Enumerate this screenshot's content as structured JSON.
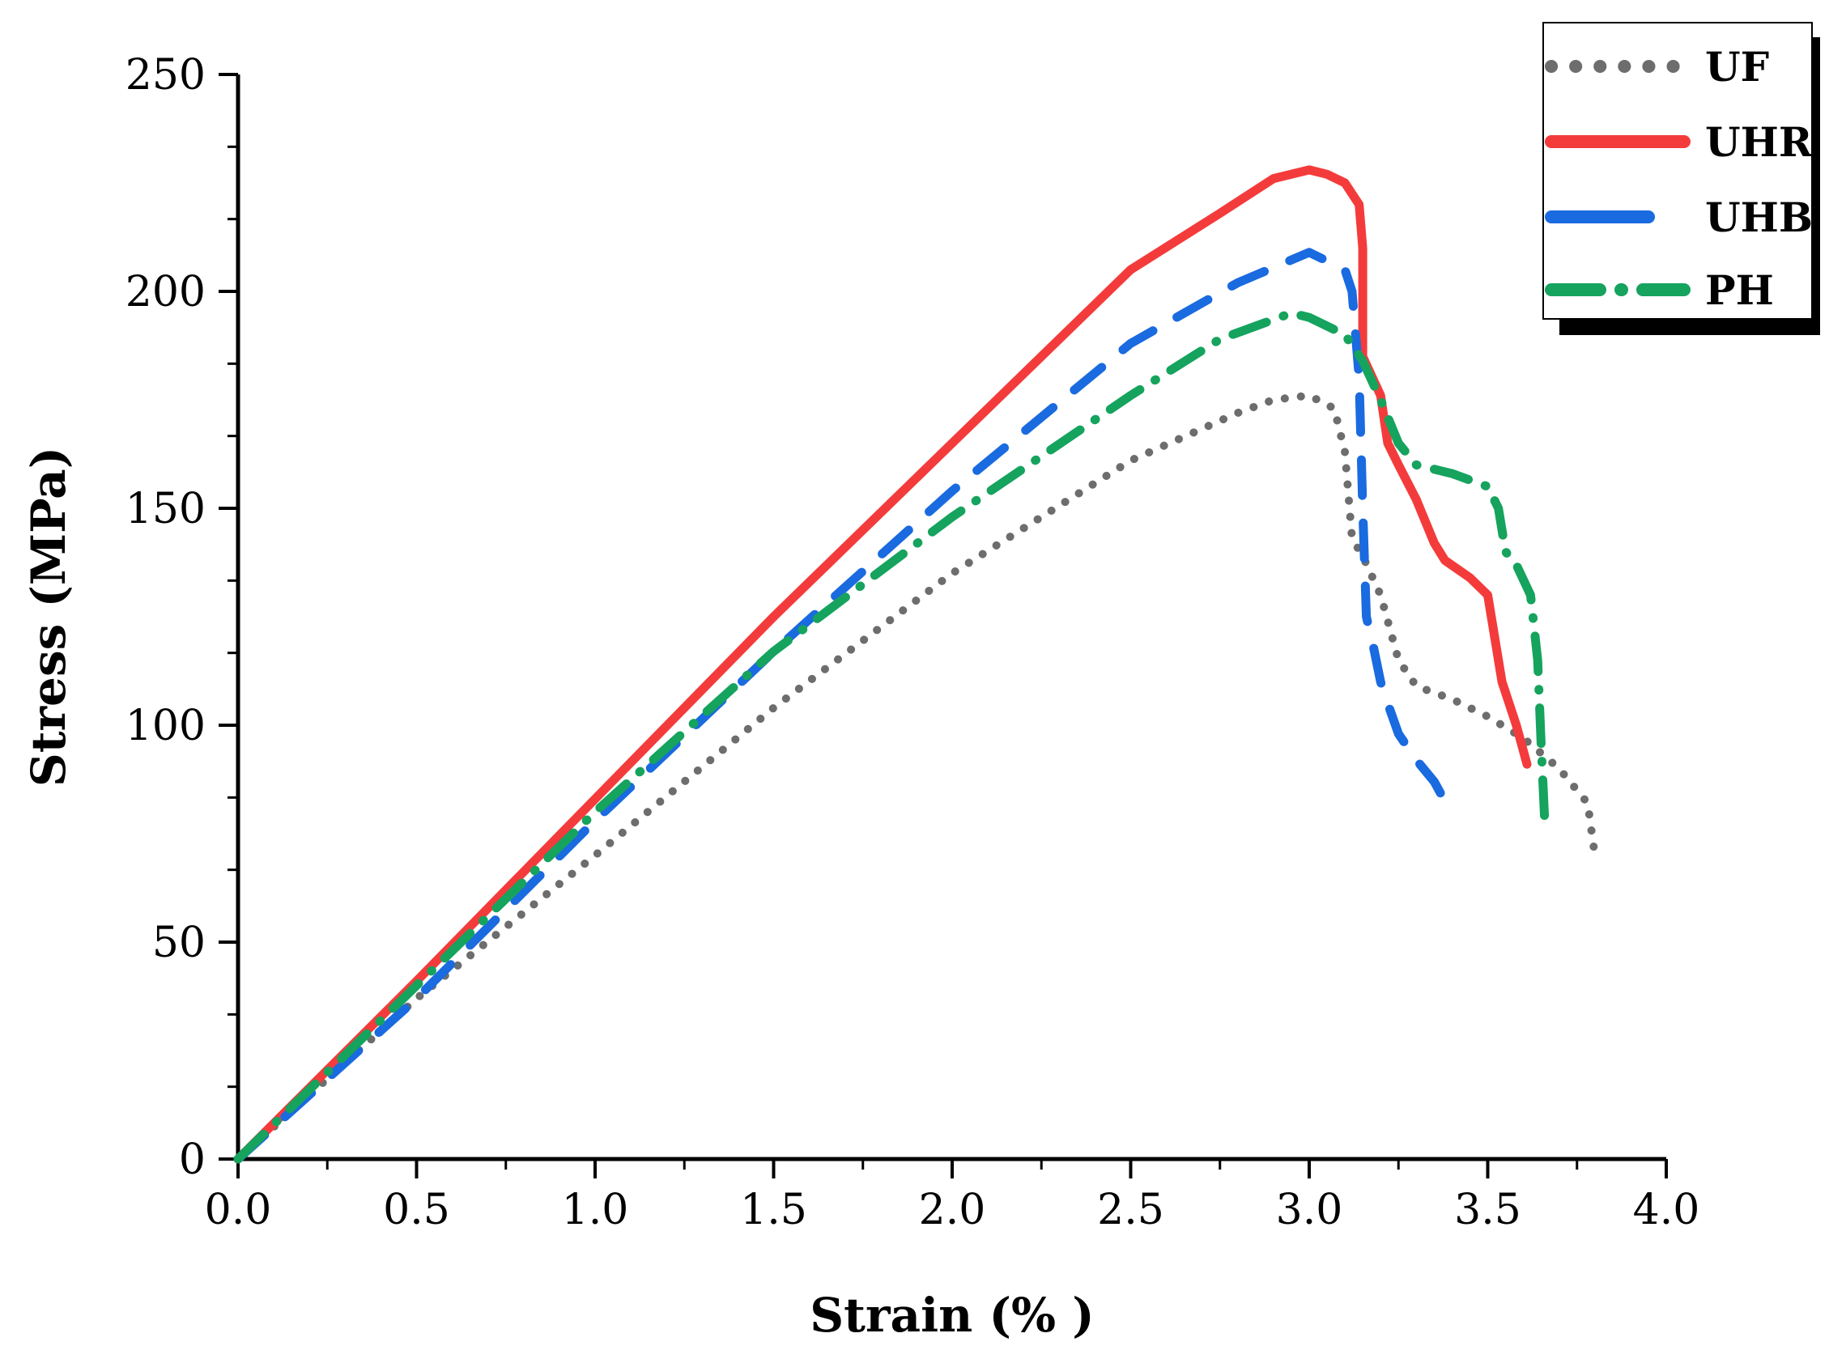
{
  "chart_data": {
    "type": "line",
    "title": "",
    "xlabel": "Strain (% )",
    "ylabel": "Stress (MPa)",
    "xlim": [
      0,
      4
    ],
    "ylim": [
      0,
      250
    ],
    "xticks": [
      "0.0",
      "0.5",
      "1.0",
      "1.5",
      "2.0",
      "2.5",
      "3.0",
      "3.5",
      "4.0"
    ],
    "yticks": [
      "0",
      "50",
      "100",
      "150",
      "200",
      "250"
    ],
    "grid": false,
    "legend_position": "top-right",
    "series": [
      {
        "name": "UF",
        "color": "#6d6d6d",
        "style": "dotted",
        "x": [
          0.0,
          0.5,
          1.0,
          1.5,
          2.0,
          2.5,
          2.8,
          2.9,
          3.0,
          3.07,
          3.1,
          3.12,
          3.15,
          3.2,
          3.25,
          3.3,
          3.4,
          3.5,
          3.6,
          3.7,
          3.78,
          3.8
        ],
        "y": [
          0,
          37,
          70,
          104,
          135,
          161,
          172,
          175,
          176,
          173,
          163,
          143,
          139,
          130,
          115,
          109,
          106,
          102,
          97,
          90,
          82,
          70
        ]
      },
      {
        "name": "UHR",
        "color": "#f43b3b",
        "style": "solid",
        "x": [
          0.0,
          0.5,
          1.0,
          1.5,
          2.0,
          2.5,
          2.75,
          2.9,
          3.0,
          3.05,
          3.1,
          3.14,
          3.15,
          3.15,
          3.2,
          3.22,
          3.25,
          3.3,
          3.35,
          3.38,
          3.45,
          3.5,
          3.52,
          3.54,
          3.58,
          3.61
        ],
        "y": [
          0,
          41,
          83,
          125,
          165,
          205,
          218,
          226,
          228,
          227,
          225,
          220,
          210,
          185,
          176,
          165,
          160,
          152,
          142,
          138,
          134,
          130,
          120,
          110,
          100,
          91
        ]
      },
      {
        "name": "UHB",
        "color": "#1a6ae0",
        "style": "dashed",
        "x": [
          0.0,
          0.5,
          1.0,
          1.5,
          2.0,
          2.5,
          2.8,
          3.0,
          3.05,
          3.1,
          3.12,
          3.14,
          3.15,
          3.16,
          3.18,
          3.2,
          3.22,
          3.25,
          3.3,
          3.35,
          3.37
        ],
        "y": [
          0,
          37,
          78,
          117,
          154,
          188,
          202,
          209,
          207,
          205,
          200,
          180,
          150,
          125,
          118,
          110,
          105,
          98,
          92,
          87,
          84
        ]
      },
      {
        "name": "PH",
        "color": "#15a35e",
        "style": "dashdot",
        "x": [
          0.0,
          0.5,
          1.0,
          1.5,
          2.0,
          2.5,
          2.75,
          2.85,
          2.95,
          3.0,
          3.1,
          3.15,
          3.2,
          3.25,
          3.3,
          3.4,
          3.5,
          3.53,
          3.55,
          3.58,
          3.62,
          3.64,
          3.65,
          3.66
        ],
        "y": [
          0,
          40,
          80,
          117,
          148,
          176,
          189,
          192,
          195,
          194,
          190,
          184,
          175,
          165,
          160,
          158,
          155,
          150,
          140,
          137,
          130,
          115,
          95,
          77
        ]
      }
    ]
  }
}
